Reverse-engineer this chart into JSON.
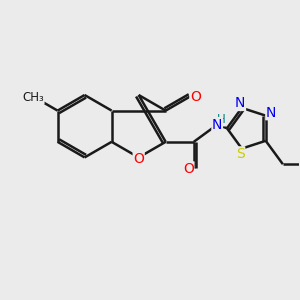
{
  "bg": "#ebebeb",
  "bond_color": "#1a1a1a",
  "bond_lw": 1.8,
  "atom_colors": {
    "O": "#ff0000",
    "N": "#0000ee",
    "S": "#cccc00",
    "H": "#008080",
    "C": "#1a1a1a"
  },
  "fs": 10,
  "fig_size": [
    3.0,
    3.0
  ],
  "dpi": 100,
  "xlim": [
    0,
    10
  ],
  "ylim": [
    0,
    10
  ]
}
